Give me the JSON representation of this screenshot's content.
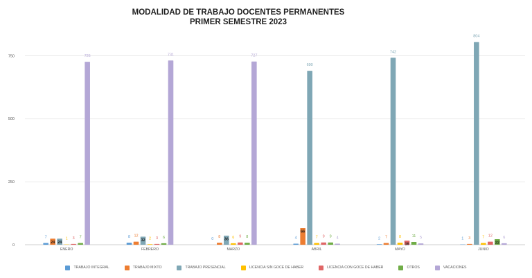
{
  "chart_data": {
    "type": "bar",
    "title": "MODALIDAD DE TRABAJO DOCENTES PERMANENTES",
    "subtitle": "PRIMER SEMESTRE 2023",
    "xlabel": "",
    "ylabel": "",
    "ylim": [
      0,
      850
    ],
    "yticks": [
      0,
      250,
      500,
      750
    ],
    "grid": true,
    "legend_position": "bottom",
    "categories": [
      "ENERO",
      "FEBRERO",
      "MARZO",
      "ABRIL",
      "MAYO",
      "JUNIO"
    ],
    "series": [
      {
        "name": "TRABAJO INTEGRAL",
        "color": "#5b9bd5",
        "values": [
          7,
          8,
          0,
          4,
          2,
          1
        ]
      },
      {
        "name": "TRABAJO MIXTO",
        "color": "#ed7d31",
        "values": [
          24,
          12,
          8,
          66,
          7,
          3
        ]
      },
      {
        "name": "TRABAJO PRESENCIAL",
        "color": "#7fa7b5",
        "values": [
          24,
          32,
          36,
          690,
          742,
          804
        ]
      },
      {
        "name": "LICENCIA SIN GOCE DE HABER",
        "color": "#ffc000",
        "values": [
          1,
          2,
          6,
          7,
          8,
          7
        ]
      },
      {
        "name": "LICENCIA CON GOCE DE HABER",
        "color": "#e06666",
        "values": [
          3,
          3,
          9,
          9,
          16,
          12
        ]
      },
      {
        "name": "OTROS",
        "color": "#70ad47",
        "values": [
          7,
          6,
          8,
          9,
          11,
          22
        ]
      },
      {
        "name": "VACACIONES",
        "color": "#b4a7d6",
        "values": [
          726,
          731,
          727,
          4,
          5,
          6
        ]
      }
    ]
  }
}
